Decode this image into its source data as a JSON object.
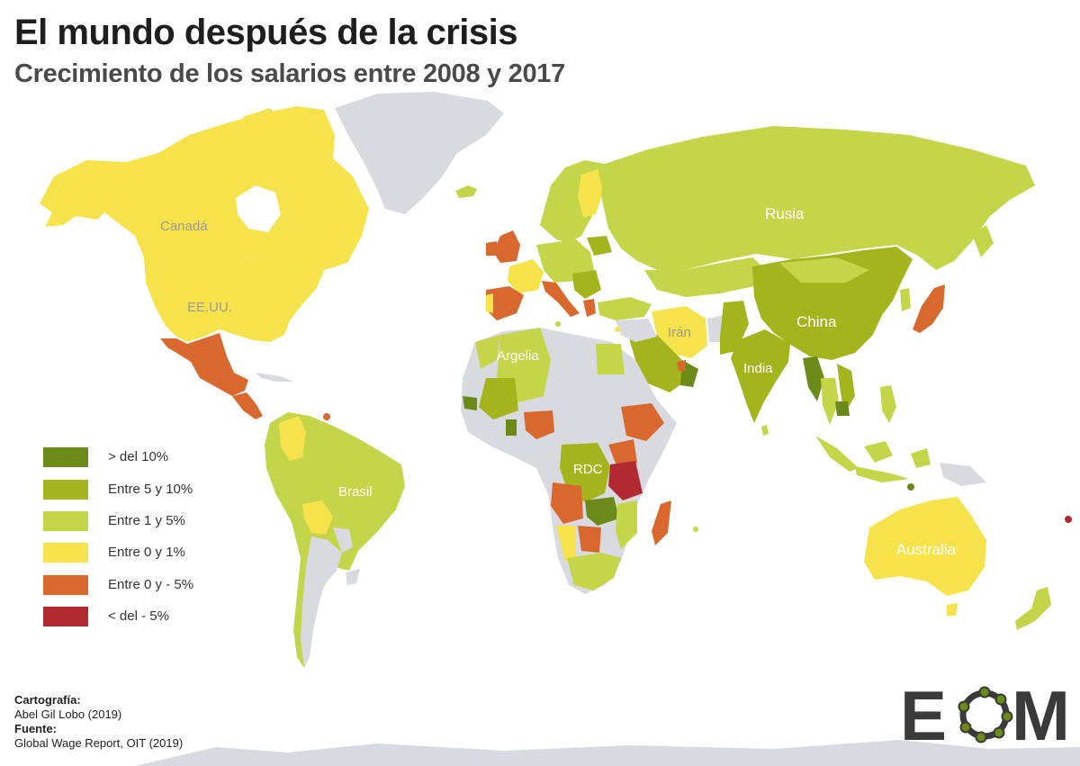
{
  "title": "El mundo después de la crisis",
  "subtitle": "Crecimiento de los salarios entre 2008 y 2017",
  "colors": {
    "gt10": "#6b8a1a",
    "5to10": "#a3b41c",
    "1to5": "#c5d54a",
    "0to1": "#f6e24a",
    "0tom5": "#d9682e",
    "ltm5": "#b12a32",
    "nodata": "#d9d9e0"
  },
  "legend": [
    {
      "label": "> del 10%",
      "color": "#6b8a1a"
    },
    {
      "label": "Entre 5 y 10%",
      "color": "#a3b41c"
    },
    {
      "label": "Entre 1 y 5%",
      "color": "#c5d54a"
    },
    {
      "label": "Entre 0 y 1%",
      "color": "#f6e24a"
    },
    {
      "label": "Entre 0 y - 5%",
      "color": "#d9682e"
    },
    {
      "label": "< del - 5%",
      "color": "#b12a32"
    }
  ],
  "labels": {
    "canada": "Canadá",
    "usa": "EE.UU.",
    "brasil": "Brasil",
    "rusia": "Rusia",
    "china": "China",
    "india": "India",
    "iran": "Irán",
    "argelia": "Argelia",
    "rdc": "RDC",
    "australia": "Australia"
  },
  "credits": {
    "cartography_heading": "Cartografía:",
    "cartography_value": "Abel Gil Lobo (2019)",
    "source_heading": "Fuente:",
    "source_value": "Global Wage Report, OIT (2019)"
  },
  "logo": {
    "left": "E",
    "right": "M"
  }
}
